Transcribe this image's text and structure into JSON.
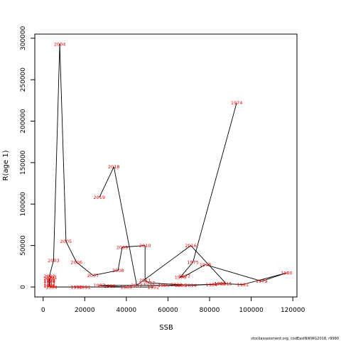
{
  "chart_data": {
    "type": "line",
    "xlabel": "SSB",
    "ylabel": "R(age 1)",
    "caption": "stockassessment.org, codEastNWWG2018, r9990",
    "xlim": [
      -4000,
      122000
    ],
    "ylim": [
      -12000,
      305000
    ],
    "x_ticks": [
      0,
      20000,
      40000,
      60000,
      80000,
      100000,
      120000
    ],
    "x_tick_labels": [
      "0",
      "20000",
      "40000",
      "60000",
      "80000",
      "100000",
      "120000"
    ],
    "y_ticks": [
      0,
      50000,
      100000,
      150000,
      200000,
      250000,
      300000
    ],
    "y_tick_labels": [
      "0",
      "50000",
      "100000",
      "150000",
      "200000",
      "250000",
      "300000"
    ],
    "grid": false,
    "line_color": "#000000",
    "label_color": "#ff0000",
    "points": [
      {
        "label": "1974",
        "x": 93000,
        "y": 222000
      },
      {
        "label": "1975",
        "x": 72000,
        "y": 30000
      },
      {
        "label": "1976",
        "x": 66000,
        "y": 12000
      },
      {
        "label": "1977",
        "x": 68000,
        "y": 13000
      },
      {
        "label": "1978",
        "x": 78000,
        "y": 27000
      },
      {
        "label": "1979",
        "x": 105000,
        "y": 7000
      },
      {
        "label": "1980",
        "x": 117000,
        "y": 17000
      },
      {
        "label": "1981",
        "x": 96000,
        "y": 3000
      },
      {
        "label": "1982",
        "x": 85000,
        "y": 4000
      },
      {
        "label": "1983",
        "x": 85000,
        "y": 4000
      },
      {
        "label": "1984",
        "x": 81000,
        "y": 3000
      },
      {
        "label": "1985",
        "x": 58000,
        "y": 2000
      },
      {
        "label": "1986",
        "x": 66000,
        "y": 2000
      },
      {
        "label": "1987",
        "x": 27000,
        "y": 2000
      },
      {
        "label": "1988",
        "x": 32000,
        "y": 1000
      },
      {
        "label": "1989",
        "x": 40000,
        "y": 0
      },
      {
        "label": "1990",
        "x": 16000,
        "y": 0
      },
      {
        "label": "1991",
        "x": 20000,
        "y": 0
      },
      {
        "label": "1992",
        "x": 53000,
        "y": 0
      },
      {
        "label": "1993",
        "x": 16000,
        "y": 0
      },
      {
        "label": "1994",
        "x": 4000,
        "y": 0
      },
      {
        "label": "1995",
        "x": 3000,
        "y": 1000
      },
      {
        "label": "1996",
        "x": 3000,
        "y": 2000
      },
      {
        "label": "1997",
        "x": 3000,
        "y": 4000
      },
      {
        "label": "1998",
        "x": 3000,
        "y": 7000
      },
      {
        "label": "1999",
        "x": 3000,
        "y": 8000
      },
      {
        "label": "2000",
        "x": 3000,
        "y": 10000
      },
      {
        "label": "2001",
        "x": 4000,
        "y": 12000
      },
      {
        "label": "2002",
        "x": 3000,
        "y": 13000
      },
      {
        "label": "2003",
        "x": 5000,
        "y": 32000
      },
      {
        "label": "2004",
        "x": 8000,
        "y": 293000
      },
      {
        "label": "2005",
        "x": 11000,
        "y": 55000
      },
      {
        "label": "2006",
        "x": 16000,
        "y": 30000
      },
      {
        "label": "2007",
        "x": 24000,
        "y": 14000
      },
      {
        "label": "2008",
        "x": 36000,
        "y": 20000
      },
      {
        "label": "2009",
        "x": 38000,
        "y": 48000
      },
      {
        "label": "2010",
        "x": 49000,
        "y": 50000
      },
      {
        "label": "2011",
        "x": 49000,
        "y": 8000
      },
      {
        "label": "2012",
        "x": 51000,
        "y": 5000
      },
      {
        "label": "2013",
        "x": 64000,
        "y": 3000
      },
      {
        "label": "2014",
        "x": 71000,
        "y": 2000
      },
      {
        "label": "2015",
        "x": 88000,
        "y": 4000
      },
      {
        "label": "2016",
        "x": 71000,
        "y": 50000
      },
      {
        "label": "2017",
        "x": 45000,
        "y": 2000
      },
      {
        "label": "2018",
        "x": 34000,
        "y": 145000
      },
      {
        "label": "2019",
        "x": 27000,
        "y": 108000
      }
    ]
  }
}
